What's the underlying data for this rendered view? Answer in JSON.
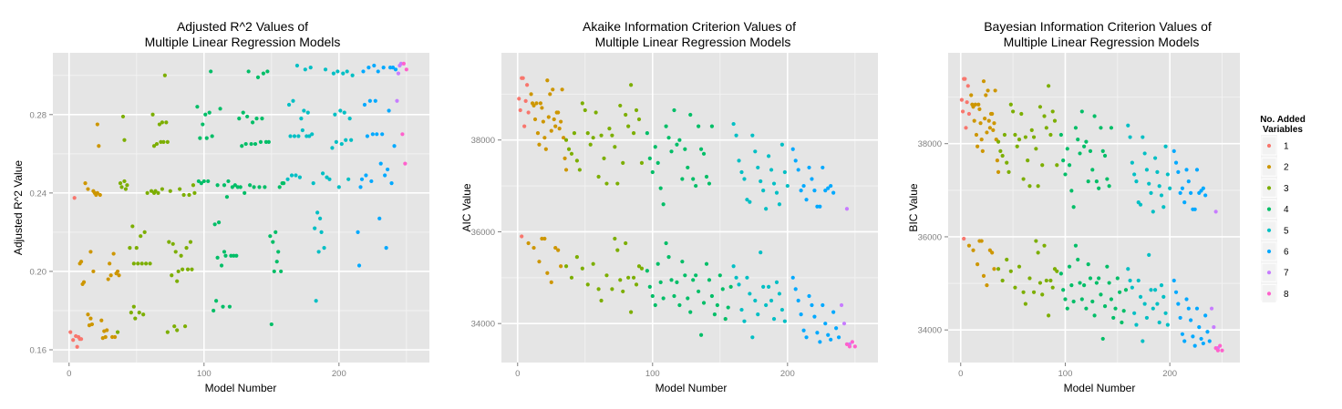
{
  "colors": {
    "panel_bg": "#e5e5e5",
    "grid_major": "#ffffff",
    "grid_minor": "#f2f2f2",
    "axis_text": "#7f7f7f",
    "title_text": "#000000",
    "variables": {
      "1": "#f8766d",
      "2": "#cd9600",
      "3": "#7cae00",
      "4": "#00be67",
      "5": "#00bfc4",
      "6": "#00a9ff",
      "7": "#c77cff",
      "8": "#ff61cc"
    }
  },
  "legend": {
    "title_line1": "No. Added",
    "title_line2": "Variables",
    "placement": "right",
    "labels": [
      "1",
      "2",
      "3",
      "4",
      "5",
      "6",
      "7",
      "8"
    ]
  },
  "chart_data": [
    {
      "type": "scatter",
      "title_line1": "Adjusted R^2 Values of",
      "title_line2": "Multiple Linear Regression Models",
      "xlabel": "Model Number",
      "ylabel": "Adjusted R^2 Value",
      "xlim": [
        -12,
        267
      ],
      "ylim": [
        0.1535,
        0.3115
      ],
      "x_ticks": [
        0,
        100,
        200
      ],
      "x_tick_labels": [
        "0",
        "100",
        "200"
      ],
      "y_ticks": [
        0.16,
        0.2,
        0.24,
        0.28
      ],
      "y_tick_labels": [
        "0.16",
        "0.20",
        "0.24",
        "0.28"
      ],
      "grid": true,
      "points": []
    },
    {
      "type": "scatter",
      "title_line1": "Akaike Information Criterion Values of",
      "title_line2": "Multiple Linear Regression Models",
      "xlabel": "Model Number",
      "ylabel": "AIC Value",
      "xlim": [
        -12,
        267
      ],
      "ylim": [
        33150,
        39900
      ],
      "x_ticks": [
        0,
        100,
        200
      ],
      "x_tick_labels": [
        "0",
        "100",
        "200"
      ],
      "y_ticks": [
        34000,
        36000,
        38000
      ],
      "y_tick_labels": [
        "34000",
        "36000",
        "38000"
      ],
      "grid": true,
      "points": []
    },
    {
      "type": "scatter",
      "title_line1": "Bayesian Information Criterion Values of",
      "title_line2": "Multiple Linear Regression Models",
      "xlabel": "Model Number",
      "ylabel": "BIC Value",
      "xlim": [
        -12,
        267
      ],
      "ylim": [
        33300,
        39950
      ],
      "x_ticks": [
        0,
        100,
        200
      ],
      "x_tick_labels": [
        "0",
        "100",
        "200"
      ],
      "y_ticks": [
        34000,
        36000,
        38000
      ],
      "y_tick_labels": [
        "34000",
        "36000",
        "38000"
      ],
      "grid": true,
      "points": []
    }
  ]
}
